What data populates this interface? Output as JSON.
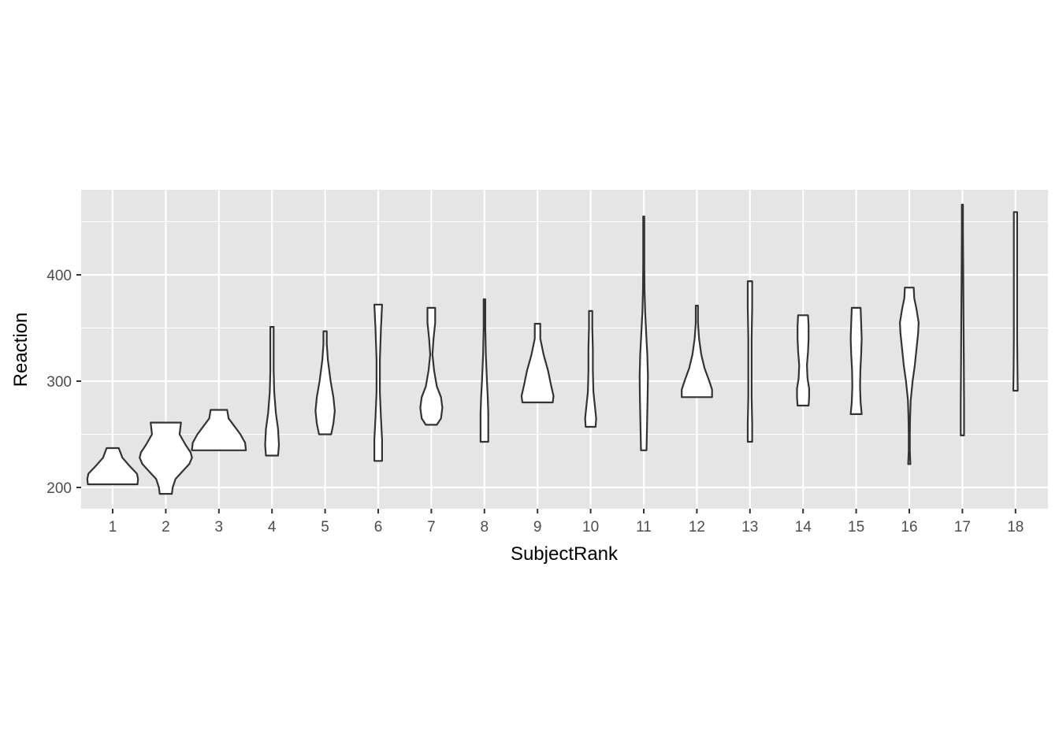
{
  "chart_data": {
    "type": "violin",
    "xlabel": "SubjectRank",
    "ylabel": "Reaction",
    "categories": [
      "1",
      "2",
      "3",
      "4",
      "5",
      "6",
      "7",
      "8",
      "9",
      "10",
      "11",
      "12",
      "13",
      "14",
      "15",
      "16",
      "17",
      "18"
    ],
    "ylim": [
      180,
      480
    ],
    "yticks": [
      200,
      300,
      400
    ],
    "grid": true,
    "colors": {
      "panel": "#e5e5e5",
      "grid": "#ffffff",
      "violin_fill": "#ffffff",
      "violin_stroke": "#333333"
    },
    "violins": [
      {
        "category": "1",
        "min": 203,
        "max": 237,
        "profile": [
          [
            203,
            0.9
          ],
          [
            208,
            0.92
          ],
          [
            213,
            0.88
          ],
          [
            220,
            0.62
          ],
          [
            228,
            0.35
          ],
          [
            237,
            0.22
          ]
        ]
      },
      {
        "category": "2",
        "min": 194,
        "max": 261,
        "profile": [
          [
            194,
            0.22
          ],
          [
            200,
            0.25
          ],
          [
            208,
            0.35
          ],
          [
            215,
            0.6
          ],
          [
            222,
            0.85
          ],
          [
            228,
            0.95
          ],
          [
            233,
            0.9
          ],
          [
            240,
            0.72
          ],
          [
            250,
            0.5
          ],
          [
            261,
            0.55
          ]
        ]
      },
      {
        "category": "3",
        "min": 235,
        "max": 273,
        "profile": [
          [
            235,
            0.98
          ],
          [
            242,
            0.95
          ],
          [
            250,
            0.78
          ],
          [
            258,
            0.55
          ],
          [
            265,
            0.35
          ],
          [
            273,
            0.3
          ]
        ]
      },
      {
        "category": "4",
        "min": 230,
        "max": 351,
        "profile": [
          [
            230,
            0.22
          ],
          [
            240,
            0.25
          ],
          [
            255,
            0.22
          ],
          [
            270,
            0.14
          ],
          [
            290,
            0.08
          ],
          [
            310,
            0.06
          ],
          [
            330,
            0.06
          ],
          [
            351,
            0.06
          ]
        ]
      },
      {
        "category": "5",
        "min": 250,
        "max": 347,
        "profile": [
          [
            250,
            0.22
          ],
          [
            260,
            0.3
          ],
          [
            272,
            0.35
          ],
          [
            285,
            0.3
          ],
          [
            300,
            0.2
          ],
          [
            320,
            0.1
          ],
          [
            335,
            0.06
          ],
          [
            347,
            0.06
          ]
        ]
      },
      {
        "category": "6",
        "min": 225,
        "max": 372,
        "profile": [
          [
            225,
            0.14
          ],
          [
            245,
            0.14
          ],
          [
            265,
            0.1
          ],
          [
            290,
            0.06
          ],
          [
            320,
            0.06
          ],
          [
            350,
            0.1
          ],
          [
            372,
            0.14
          ]
        ]
      },
      {
        "category": "7",
        "min": 259,
        "max": 369,
        "profile": [
          [
            259,
            0.2
          ],
          [
            265,
            0.35
          ],
          [
            275,
            0.4
          ],
          [
            285,
            0.35
          ],
          [
            295,
            0.2
          ],
          [
            310,
            0.1
          ],
          [
            325,
            0.04
          ],
          [
            340,
            0.08
          ],
          [
            355,
            0.14
          ],
          [
            369,
            0.14
          ]
        ]
      },
      {
        "category": "8",
        "min": 243,
        "max": 377,
        "profile": [
          [
            243,
            0.14
          ],
          [
            255,
            0.14
          ],
          [
            270,
            0.14
          ],
          [
            285,
            0.12
          ],
          [
            300,
            0.09
          ],
          [
            325,
            0.05
          ],
          [
            350,
            0.03
          ],
          [
            377,
            0.03
          ]
        ]
      },
      {
        "category": "9",
        "min": 280,
        "max": 354,
        "profile": [
          [
            280,
            0.55
          ],
          [
            286,
            0.58
          ],
          [
            295,
            0.5
          ],
          [
            310,
            0.38
          ],
          [
            325,
            0.22
          ],
          [
            340,
            0.1
          ],
          [
            354,
            0.1
          ]
        ]
      },
      {
        "category": "10",
        "min": 257,
        "max": 366,
        "profile": [
          [
            257,
            0.18
          ],
          [
            265,
            0.2
          ],
          [
            275,
            0.16
          ],
          [
            290,
            0.1
          ],
          [
            310,
            0.08
          ],
          [
            330,
            0.08
          ],
          [
            350,
            0.06
          ],
          [
            366,
            0.06
          ]
        ]
      },
      {
        "category": "11",
        "min": 235,
        "max": 455,
        "profile": [
          [
            235,
            0.1
          ],
          [
            260,
            0.12
          ],
          [
            285,
            0.14
          ],
          [
            305,
            0.15
          ],
          [
            325,
            0.13
          ],
          [
            345,
            0.09
          ],
          [
            365,
            0.05
          ],
          [
            385,
            0.03
          ],
          [
            410,
            0.02
          ],
          [
            430,
            0.02
          ],
          [
            455,
            0.02
          ]
        ]
      },
      {
        "category": "12",
        "min": 285,
        "max": 371,
        "profile": [
          [
            285,
            0.55
          ],
          [
            292,
            0.55
          ],
          [
            300,
            0.45
          ],
          [
            312,
            0.28
          ],
          [
            325,
            0.16
          ],
          [
            340,
            0.08
          ],
          [
            355,
            0.04
          ],
          [
            371,
            0.04
          ]
        ]
      },
      {
        "category": "13",
        "min": 243,
        "max": 394,
        "profile": [
          [
            243,
            0.08
          ],
          [
            260,
            0.08
          ],
          [
            285,
            0.06
          ],
          [
            310,
            0.06
          ],
          [
            340,
            0.06
          ],
          [
            370,
            0.08
          ],
          [
            394,
            0.08
          ]
        ]
      },
      {
        "category": "14",
        "min": 277,
        "max": 362,
        "profile": [
          [
            277,
            0.2
          ],
          [
            285,
            0.22
          ],
          [
            293,
            0.22
          ],
          [
            303,
            0.16
          ],
          [
            315,
            0.14
          ],
          [
            328,
            0.18
          ],
          [
            340,
            0.2
          ],
          [
            352,
            0.2
          ],
          [
            362,
            0.18
          ]
        ]
      },
      {
        "category": "15",
        "min": 269,
        "max": 369,
        "profile": [
          [
            269,
            0.2
          ],
          [
            280,
            0.16
          ],
          [
            295,
            0.14
          ],
          [
            310,
            0.15
          ],
          [
            325,
            0.18
          ],
          [
            340,
            0.2
          ],
          [
            355,
            0.18
          ],
          [
            369,
            0.16
          ]
        ]
      },
      {
        "category": "16",
        "min": 222,
        "max": 388,
        "profile": [
          [
            222,
            0.04
          ],
          [
            235,
            0.02
          ],
          [
            250,
            0.02
          ],
          [
            265,
            0.03
          ],
          [
            282,
            0.05
          ],
          [
            300,
            0.12
          ],
          [
            315,
            0.2
          ],
          [
            330,
            0.26
          ],
          [
            345,
            0.32
          ],
          [
            355,
            0.34
          ],
          [
            368,
            0.26
          ],
          [
            378,
            0.18
          ],
          [
            388,
            0.16
          ]
        ]
      },
      {
        "category": "17",
        "min": 249,
        "max": 466,
        "profile": [
          [
            249,
            0.06
          ],
          [
            280,
            0.06
          ],
          [
            320,
            0.05
          ],
          [
            360,
            0.04
          ],
          [
            400,
            0.03
          ],
          [
            440,
            0.02
          ],
          [
            466,
            0.02
          ]
        ]
      },
      {
        "category": "18",
        "min": 291,
        "max": 459,
        "profile": [
          [
            291,
            0.08
          ],
          [
            310,
            0.07
          ],
          [
            340,
            0.06
          ],
          [
            370,
            0.06
          ],
          [
            400,
            0.06
          ],
          [
            430,
            0.06
          ],
          [
            459,
            0.06
          ]
        ]
      }
    ]
  }
}
